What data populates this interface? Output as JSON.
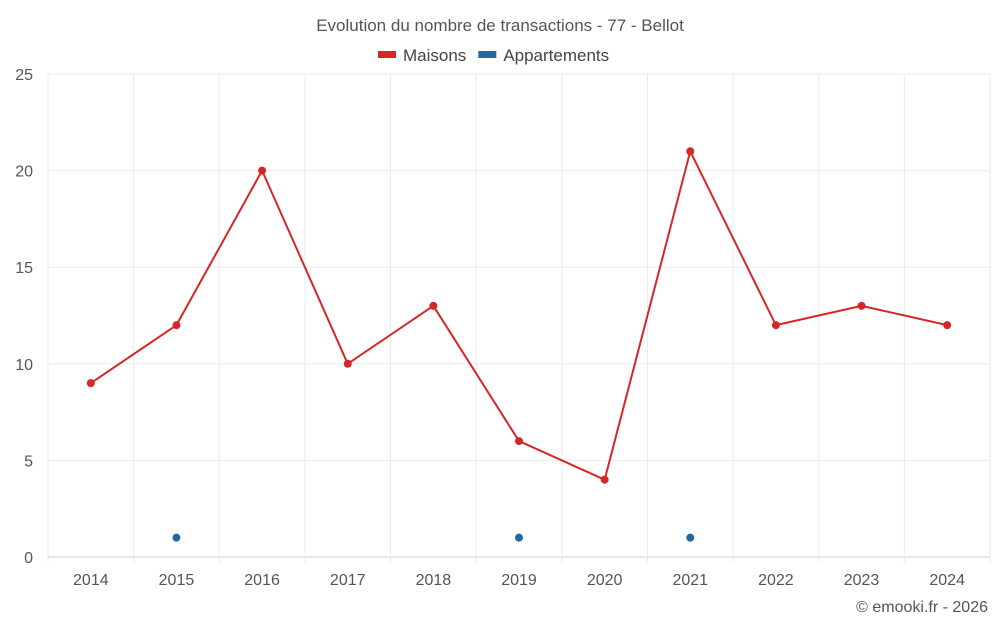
{
  "chart_data": {
    "type": "line",
    "title": "Evolution du nombre de transactions - 77 - Bellot",
    "xlabel": "",
    "ylabel": "",
    "categories": [
      "2014",
      "2015",
      "2016",
      "2017",
      "2018",
      "2019",
      "2020",
      "2021",
      "2022",
      "2023",
      "2024"
    ],
    "ylim": [
      0,
      25
    ],
    "yticks": [
      0,
      5,
      10,
      15,
      20,
      25
    ],
    "grid": true,
    "legend_position": "top-center",
    "series": [
      {
        "name": "Maisons",
        "color": "#d62728",
        "values": [
          9,
          12,
          20,
          10,
          13,
          6,
          4,
          21,
          12,
          13,
          12
        ],
        "line": true
      },
      {
        "name": "Appartements",
        "color": "#1f6aa5",
        "values": [
          null,
          1,
          null,
          null,
          null,
          1,
          null,
          1,
          null,
          null,
          null
        ],
        "line": false
      }
    ]
  },
  "footer": {
    "credit": "© emooki.fr - 2026"
  }
}
